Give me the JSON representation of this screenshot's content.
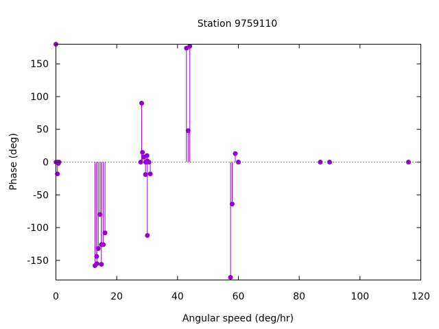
{
  "chart_data": {
    "type": "scatter",
    "title": "Station 9759110",
    "xlabel": "Angular speed (deg/hr)",
    "ylabel": "Phase (deg)",
    "xlim": [
      0,
      120
    ],
    "ylim": [
      -180,
      180
    ],
    "xticks": [
      0,
      20,
      40,
      60,
      80,
      100,
      120
    ],
    "yticks": [
      -150,
      -100,
      -50,
      0,
      50,
      100,
      150
    ],
    "zero_line": "dotted",
    "impulses": true,
    "grid": false,
    "color": "#9400d3",
    "series": [
      {
        "points": [
          {
            "x": 0.0,
            "y": 180
          },
          {
            "x": 0.04,
            "y": 0
          },
          {
            "x": 0.5,
            "y": -18
          },
          {
            "x": 0.54,
            "y": 0
          },
          {
            "x": 0.82,
            "y": -2
          },
          {
            "x": 1.02,
            "y": 0
          },
          {
            "x": 12.85,
            "y": -158
          },
          {
            "x": 13.4,
            "y": -144
          },
          {
            "x": 13.47,
            "y": -155
          },
          {
            "x": 13.94,
            "y": -132
          },
          {
            "x": 14.5,
            "y": -80
          },
          {
            "x": 14.96,
            "y": -126
          },
          {
            "x": 14.96,
            "y": -156
          },
          {
            "x": 15.6,
            "y": -126
          },
          {
            "x": 16.14,
            "y": -108
          },
          {
            "x": 27.9,
            "y": 0
          },
          {
            "x": 28.2,
            "y": 90
          },
          {
            "x": 28.44,
            "y": 15
          },
          {
            "x": 28.99,
            "y": 8
          },
          {
            "x": 29.46,
            "y": -19
          },
          {
            "x": 29.53,
            "y": 0
          },
          {
            "x": 29.6,
            "y": 0
          },
          {
            "x": 29.96,
            "y": 10
          },
          {
            "x": 30.0,
            "y": 2
          },
          {
            "x": 30.08,
            "y": -112
          },
          {
            "x": 30.6,
            "y": 0
          },
          {
            "x": 31.02,
            "y": -18
          },
          {
            "x": 42.93,
            "y": 174
          },
          {
            "x": 43.48,
            "y": 48
          },
          {
            "x": 44.03,
            "y": 177
          },
          {
            "x": 57.42,
            "y": -176
          },
          {
            "x": 57.97,
            "y": -64
          },
          {
            "x": 58.98,
            "y": 13
          },
          {
            "x": 60.0,
            "y": 0
          },
          {
            "x": 86.95,
            "y": 0
          },
          {
            "x": 90.0,
            "y": 0
          },
          {
            "x": 115.94,
            "y": 0
          }
        ]
      }
    ]
  }
}
